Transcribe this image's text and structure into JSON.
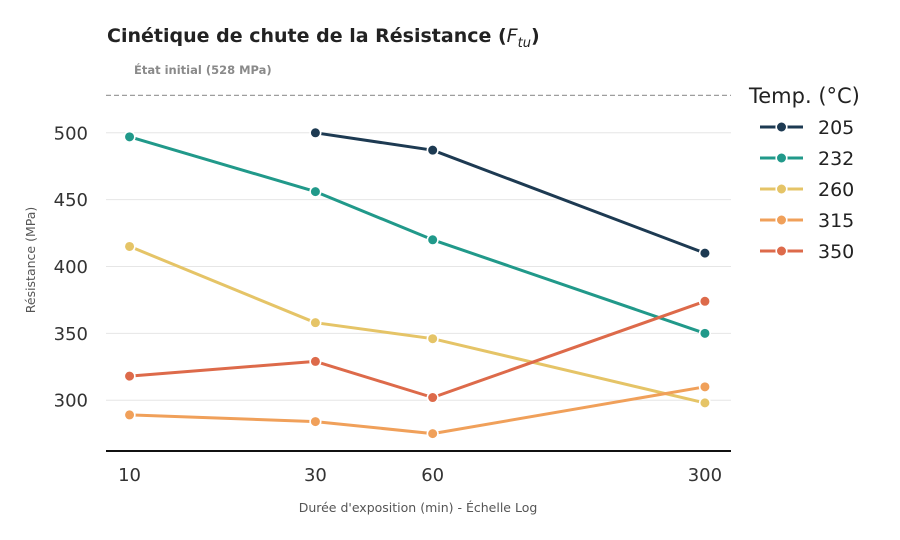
{
  "chart_data": {
    "type": "line",
    "title": {
      "prefix": "Cinétique de chute de la Résistance (",
      "symbol_main": "F",
      "symbol_sub": "tu",
      "suffix": ")"
    },
    "xlabel": "Durée d'exposition (min) - Échelle Log",
    "ylabel": "Résistance (MPa)",
    "x_scale": "log",
    "x": [
      10,
      30,
      60,
      300
    ],
    "x_ticks": [
      "10",
      "30",
      "60",
      "300"
    ],
    "xlim": [
      8.7,
      350
    ],
    "y_ticks": [
      "300",
      "350",
      "400",
      "450",
      "500"
    ],
    "y_tick_values": [
      300,
      350,
      400,
      450,
      500
    ],
    "ylim": [
      262,
      538
    ],
    "grid": "horizontal",
    "reference_line": {
      "value": 528,
      "label": "État initial (528 MPa)",
      "style": "dashed",
      "color": "#9e9e9e"
    },
    "legend": {
      "title": "Temp. (°C)",
      "position": "right"
    },
    "series": [
      {
        "name": "205",
        "color": "#1d3a52",
        "x": [
          30,
          60,
          300
        ],
        "values": [
          500,
          487,
          410
        ]
      },
      {
        "name": "232",
        "color": "#21998a",
        "x": [
          10,
          30,
          60,
          300
        ],
        "values": [
          497,
          456,
          420,
          350
        ]
      },
      {
        "name": "260",
        "color": "#e5c467",
        "x": [
          10,
          30,
          60,
          300
        ],
        "values": [
          415,
          358,
          346,
          298
        ]
      },
      {
        "name": "315",
        "color": "#f0a05a",
        "x": [
          10,
          30,
          60,
          300
        ],
        "values": [
          289,
          284,
          275,
          310
        ]
      },
      {
        "name": "350",
        "color": "#dd6a4a",
        "x": [
          10,
          30,
          60,
          300
        ],
        "values": [
          318,
          329,
          302,
          374
        ]
      }
    ]
  }
}
